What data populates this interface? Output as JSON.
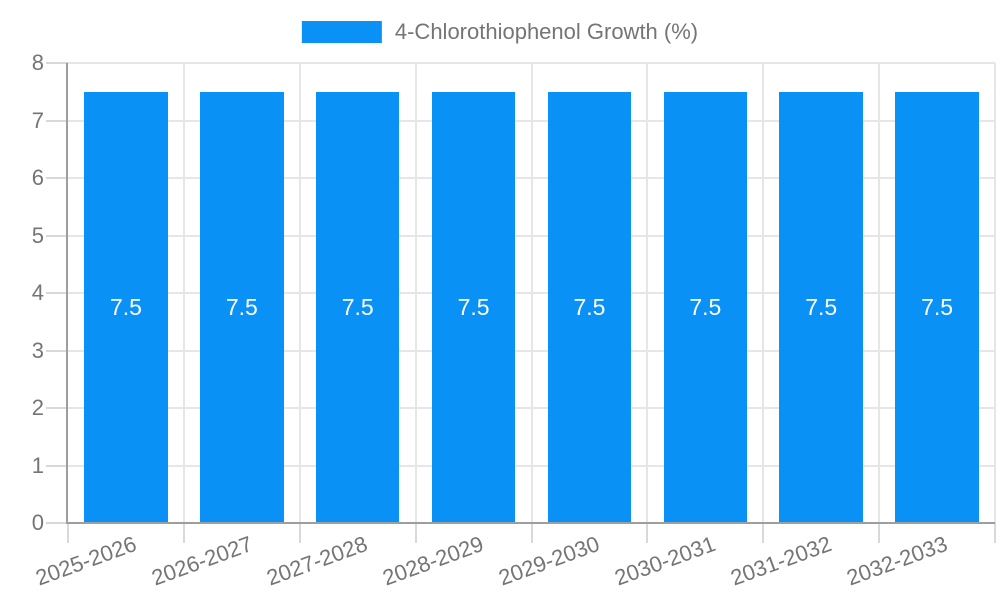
{
  "chart_data": {
    "type": "bar",
    "series_name": "4-Chlorothiophenol Growth (%)",
    "categories": [
      "2025-2026",
      "2026-2027",
      "2027-2028",
      "2028-2029",
      "2029-2030",
      "2030-2031",
      "2031-2032",
      "2032-2033"
    ],
    "values": [
      7.5,
      7.5,
      7.5,
      7.5,
      7.5,
      7.5,
      7.5,
      7.5
    ],
    "bar_value_labels": [
      "7.5",
      "7.5",
      "7.5",
      "7.5",
      "7.5",
      "7.5",
      "7.5",
      "7.5"
    ],
    "title": "",
    "xlabel": "",
    "ylabel": "",
    "ylim": [
      0,
      8
    ],
    "yticks": [
      0,
      1,
      2,
      3,
      4,
      5,
      6,
      7,
      8
    ],
    "grid": true,
    "legend_position": "top",
    "x_label_rotation_deg": -20
  },
  "colors": {
    "bar": "#0A91F5",
    "bar_label": "#FFFFFF",
    "axis_line": "#9E9E9E",
    "grid_line": "#E6E6E6",
    "tick_line": "#D9D9D9",
    "axis_text": "#757575",
    "background": "#FFFFFF"
  }
}
